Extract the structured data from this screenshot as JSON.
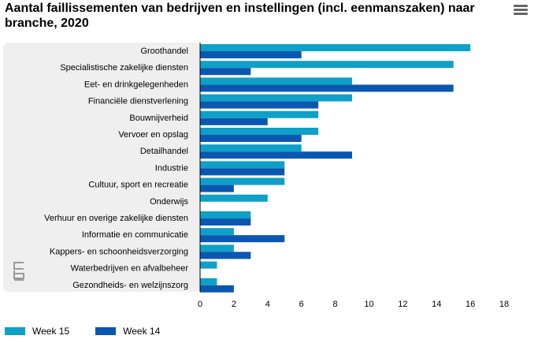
{
  "header": {
    "title": "Aantal faillissementen van bedrijven en instellingen (incl. eenmanszaken) naar branche, 2020",
    "menu_icon": "hamburger-menu-icon"
  },
  "colors": {
    "week15": "#0fa0c8",
    "week14": "#0b57b0",
    "plot_band": "#efefef",
    "axis": "#000000"
  },
  "logo": {
    "icon": "cbs-logo-icon"
  },
  "chart_data": {
    "type": "bar",
    "orientation": "horizontal",
    "categories": [
      "Groothandel",
      "Specialistische zakelijke diensten",
      "Eet- en drinkgelegenheden",
      "Financiële dienstverlening",
      "Bouwnijverheid",
      "Vervoer en opslag",
      "Detailhandel",
      "Industrie",
      "Cultuur, sport en recreatie",
      "Onderwijs",
      "Verhuur en overige zakelijke diensten",
      "Informatie en communicatie",
      "Kappers- en schoonheidsverzorging",
      "Waterbedrijven en afvalbeheer",
      "Gezondheids- en welzijnszorg"
    ],
    "series": [
      {
        "name": "Week 15",
        "values": [
          16,
          15,
          9,
          9,
          7,
          7,
          6,
          5,
          5,
          4,
          3,
          2,
          2,
          1,
          1
        ]
      },
      {
        "name": "Week 14",
        "values": [
          6,
          3,
          15,
          7,
          4,
          6,
          9,
          5,
          2,
          0,
          3,
          5,
          3,
          0,
          2
        ]
      }
    ],
    "xlim": [
      0,
      18
    ],
    "xticks": [
      0,
      2,
      4,
      6,
      8,
      10,
      12,
      14,
      16,
      18
    ],
    "legend_position": "bottom-left",
    "grid": false
  }
}
